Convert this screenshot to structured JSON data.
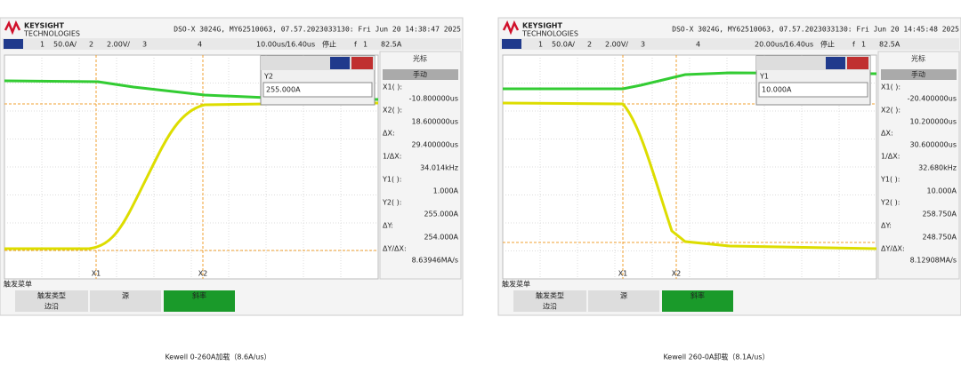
{
  "panels": [
    {
      "logo": {
        "name": "KEYSIGHT",
        "sub": "TECHNOLOGIES"
      },
      "header": "DSO-X 3024G, MY62510063, 07.57.2023033130: Fri Jun 20 14:38:47 2025",
      "top_bar": {
        "ch1": "1",
        "ch1_scale": "50.0A/",
        "ch2": "2",
        "ch2_scale": "2.00V/",
        "ch3": "3",
        "ch4": "4",
        "timebase": "10.00us/",
        "delay": "16.40us",
        "status": "停止",
        "trig": "f",
        "trig_ch": "1",
        "trig_level": "82.5A"
      },
      "dialog": {
        "label": "Y2",
        "value": "255.000A"
      },
      "side": {
        "title": "光标",
        "mode": "手动",
        "rows": [
          {
            "label": "X1( ):",
            "value": "-10.800000us"
          },
          {
            "label": "X2( ):",
            "value": "18.600000us"
          },
          {
            "label": "ΔX:",
            "value": "29.400000us"
          },
          {
            "label": "1/ΔX:",
            "value": "34.014kHz"
          },
          {
            "label": "Y1( ):",
            "value": "1.000A"
          },
          {
            "label": "Y2( ):",
            "value": "255.000A",
            "highlight": true
          },
          {
            "label": "ΔY:",
            "value": "254.000A"
          },
          {
            "label": "ΔY/ΔX:",
            "value": "8.63946MA/s"
          }
        ]
      },
      "cursors": {
        "x1": "X1",
        "x2": "X2"
      },
      "menu": {
        "title": "触发菜单",
        "trigger_type": "触发类型",
        "edge": "边沿",
        "source": "源",
        "slope": "斜率"
      },
      "caption": "Kewell 0-260A加载（8.6A/us）"
    },
    {
      "logo": {
        "name": "KEYSIGHT",
        "sub": "TECHNOLOGIES"
      },
      "header": "DSO-X 3024G, MY62510063, 07.57.2023033130: Fri Jun 20 14:45:48 2025",
      "top_bar": {
        "ch1": "1",
        "ch1_scale": "50.0A/",
        "ch2": "2",
        "ch2_scale": "2.00V/",
        "ch3": "3",
        "ch4": "4",
        "timebase": "20.00us/",
        "delay": "16.40us",
        "status": "停止",
        "trig": "f",
        "trig_ch": "1",
        "trig_level": "82.5A"
      },
      "dialog": {
        "label": "Y1",
        "value": "10.000A"
      },
      "side": {
        "title": "光标",
        "mode": "手动",
        "rows": [
          {
            "label": "X1( ):",
            "value": "-20.400000us"
          },
          {
            "label": "X2( ):",
            "value": "10.200000us"
          },
          {
            "label": "ΔX:",
            "value": "30.600000us"
          },
          {
            "label": "1/ΔX:",
            "value": "32.680kHz"
          },
          {
            "label": "Y1( ):",
            "value": "10.000A",
            "highlight": true
          },
          {
            "label": "Y2( ):",
            "value": "258.750A"
          },
          {
            "label": "ΔY:",
            "value": "248.750A"
          },
          {
            "label": "ΔY/ΔX:",
            "value": "8.12908MA/s"
          }
        ]
      },
      "cursors": {
        "x1": "X1",
        "x2": "X2"
      },
      "menu": {
        "title": "触发菜单",
        "trigger_type": "触发类型",
        "edge": "边沿",
        "source": "源",
        "slope": "斜率"
      },
      "caption": "Kewell 260-0A卸载（8.1A/us）"
    }
  ]
}
